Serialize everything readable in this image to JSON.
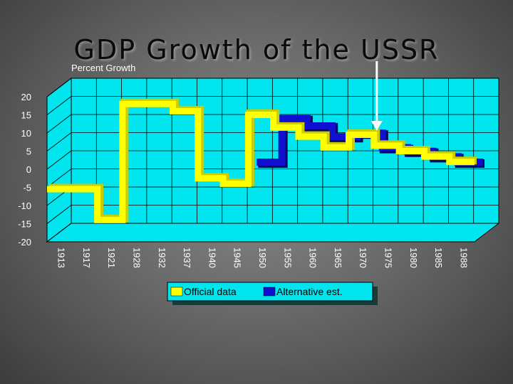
{
  "slide": {
    "title": "GDP Growth of the USSR"
  },
  "chart_data": {
    "type": "line",
    "style": "3d-step",
    "title": "GDP Growth of the USSR",
    "ylabel": "Percent Growth",
    "xlabel": "",
    "ylim": [
      -20,
      20
    ],
    "yticks": [
      20,
      15,
      10,
      5,
      0,
      -5,
      -10,
      -15,
      -20
    ],
    "categories": [
      "1913",
      "1917",
      "1921",
      "1928",
      "1932",
      "1937",
      "1940",
      "1945",
      "1950",
      "1955",
      "1960",
      "1965",
      "1970",
      "1975",
      "1980",
      "1985",
      "1988"
    ],
    "series": [
      {
        "name": "Official data",
        "color": "#ffff00",
        "values": [
          -5.5,
          -5.5,
          -14,
          18,
          18,
          16,
          -2.5,
          -4,
          15,
          11.5,
          9,
          6,
          9.5,
          6.5,
          5,
          3.5,
          2
        ]
      },
      {
        "name": "Alternative est.",
        "color": "#1010d0",
        "values": [
          null,
          null,
          null,
          null,
          null,
          null,
          null,
          null,
          0,
          12,
          10,
          7,
          8,
          4,
          3,
          1.5,
          0
        ]
      }
    ],
    "annotation": {
      "type": "arrow",
      "at_category": "1975",
      "color": "#ffffff"
    },
    "background_color": "#00e5ee",
    "grid": true,
    "legend": "bottom-center"
  }
}
